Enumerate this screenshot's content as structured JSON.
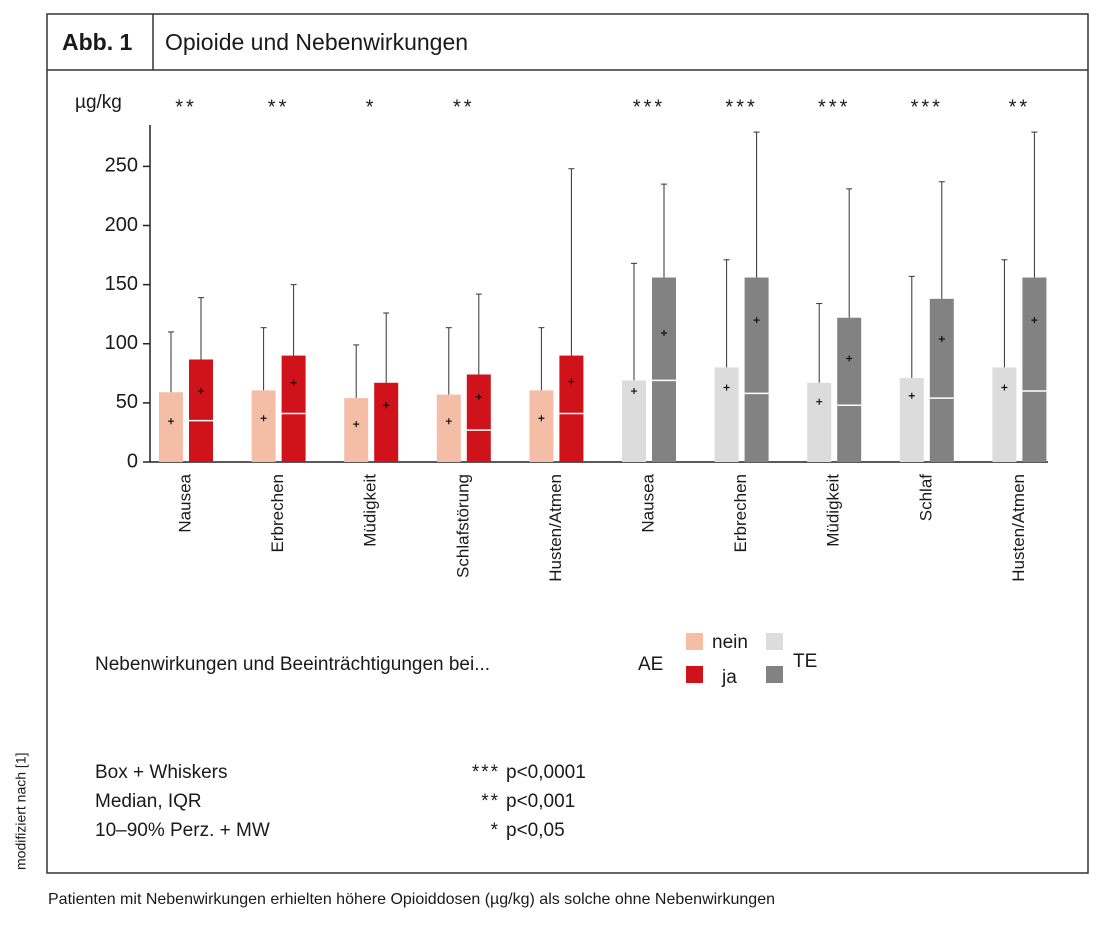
{
  "figure_label": "Abb. 1",
  "chart_data": {
    "type": "boxbar",
    "title": "Opioide und Nebenwirkungen",
    "y_label": "µg/kg",
    "x_label": "Nebenwirkungen und Beeinträchtigungen bei...",
    "categories": [
      "Nausea",
      "Erbrechen",
      "Müdigkeit",
      "Schlafstörung",
      "Husten/Atmen",
      "Nausea",
      "Erbrechen",
      "Müdigkeit",
      "Schlaf",
      "Husten/Atmen"
    ],
    "significance": [
      "**",
      "**",
      "*",
      "**",
      null,
      "***",
      "***",
      "***",
      "***",
      "**"
    ],
    "ylim": [
      0,
      285
    ],
    "yticks": [
      0,
      50,
      100,
      150,
      200,
      250
    ],
    "median_color": "#ffffff",
    "series": [
      {
        "name": "nein",
        "group": "AE",
        "color": "#f4bda6",
        "values": [
          59,
          60.6,
          54,
          57,
          60.6,
          null,
          null,
          null,
          null,
          null
        ],
        "medians": [
          null,
          null,
          null,
          null,
          null,
          null,
          null,
          null,
          null,
          null
        ],
        "whiskers": [
          110,
          113.6,
          99,
          113.6,
          113.6,
          null,
          null,
          null,
          null,
          null
        ],
        "means": [
          34.5,
          37,
          32,
          34.5,
          37,
          null,
          null,
          null,
          null,
          null
        ]
      },
      {
        "name": "ja",
        "group": "AE",
        "color": "#d0121b",
        "values": [
          86.7,
          90,
          67,
          74,
          90,
          null,
          null,
          null,
          null,
          null
        ],
        "medians": [
          35,
          41,
          null,
          27,
          41,
          null,
          null,
          null,
          null,
          null
        ],
        "whiskers": [
          139,
          150,
          126,
          142,
          248,
          null,
          null,
          null,
          null,
          null
        ],
        "means": [
          60,
          67,
          48,
          55,
          68,
          null,
          null,
          null,
          null,
          null
        ]
      },
      {
        "name": "nein",
        "group": "TE",
        "color": "#dcdcdc",
        "values": [
          null,
          null,
          null,
          null,
          null,
          69,
          80,
          67,
          71,
          80
        ],
        "medians": [
          null,
          null,
          null,
          null,
          null,
          null,
          null,
          null,
          null,
          null
        ],
        "whiskers": [
          null,
          null,
          null,
          null,
          null,
          168,
          171,
          134,
          157,
          171
        ],
        "means": [
          null,
          null,
          null,
          null,
          null,
          60,
          63,
          51,
          56,
          63
        ]
      },
      {
        "name": "ja",
        "group": "TE",
        "color": "#828282",
        "values": [
          null,
          null,
          null,
          null,
          null,
          156,
          156,
          122,
          138,
          156
        ],
        "medians": [
          null,
          null,
          null,
          null,
          null,
          69,
          58,
          48,
          54,
          60
        ],
        "whiskers": [
          null,
          null,
          null,
          null,
          null,
          235,
          279,
          231,
          237,
          279
        ],
        "means": [
          null,
          null,
          null,
          null,
          null,
          109,
          120,
          87.5,
          104,
          120
        ]
      }
    ],
    "notes": [
      "Box + Whiskers",
      "Median, IQR",
      "10–90% Perz. + MW"
    ],
    "significance_key": [
      {
        "stars": "***",
        "label": "p<0,0001"
      },
      {
        "stars": "**",
        "label": "p<0,001"
      },
      {
        "stars": "*",
        "label": "p<0,05"
      }
    ]
  },
  "source": "modifiziert nach [1]",
  "caption": "Patienten mit Nebenwirkungen erhielten höhere Opioiddosen (µg/kg) als solche ohne Nebenwirkungen"
}
